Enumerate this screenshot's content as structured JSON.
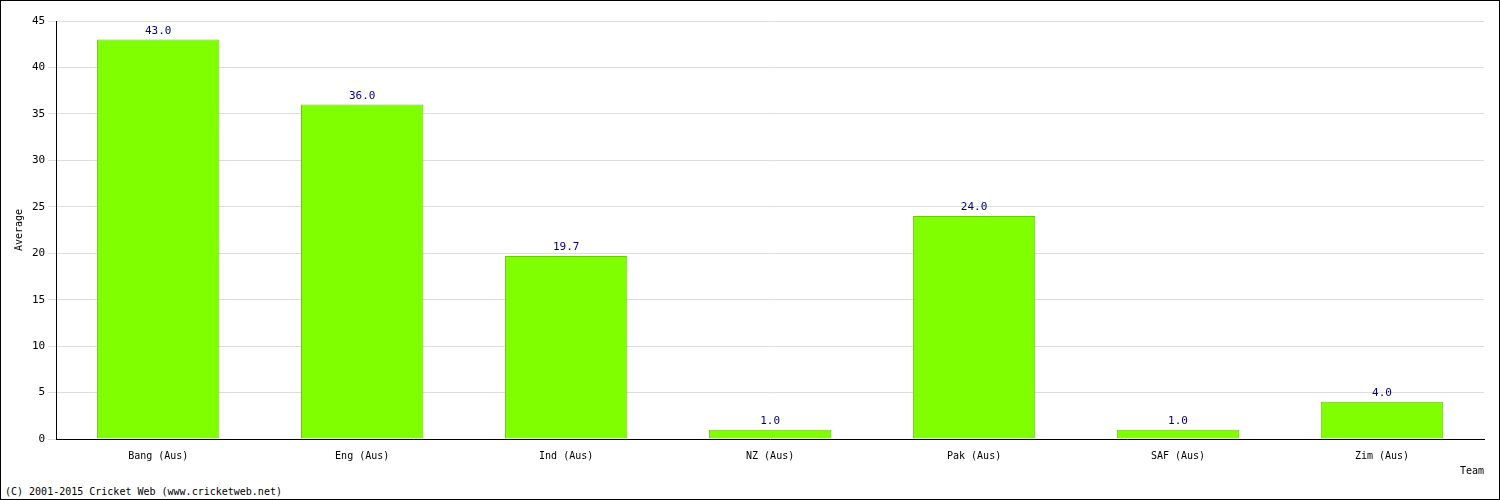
{
  "chart_data": {
    "type": "bar",
    "categories": [
      "Bang (Aus)",
      "Eng (Aus)",
      "Ind (Aus)",
      "NZ (Aus)",
      "Pak (Aus)",
      "SAF (Aus)",
      "Zim (Aus)"
    ],
    "values": [
      43.0,
      36.0,
      19.7,
      1.0,
      24.0,
      1.0,
      4.0
    ],
    "value_labels": [
      "43.0",
      "36.0",
      "19.7",
      "1.0",
      "24.0",
      "1.0",
      "4.0"
    ],
    "data_labels": true,
    "color": "#80ff00",
    "x_label": "Team",
    "y_label": "Average",
    "ylim": [
      0,
      45
    ],
    "yticks": [
      0,
      5,
      10,
      15,
      20,
      25,
      30,
      35,
      40,
      45
    ],
    "grid": true,
    "annotations": [
      "(C) 2001-2015 Cricket Web (www.cricketweb.net)"
    ]
  }
}
